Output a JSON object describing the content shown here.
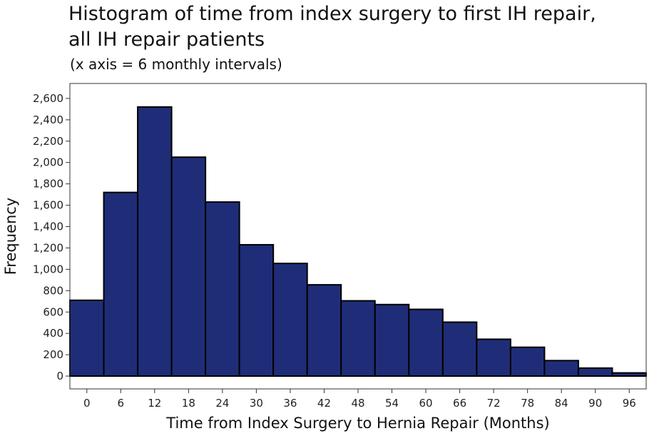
{
  "chart_data": {
    "type": "bar",
    "title_lines": [
      "Histogram of time from index surgery to first IH repair,",
      "all IH repair patients"
    ],
    "subtitle": "(x axis = 6 monthly intervals)",
    "xlabel": "Time from Index Surgery to Hernia Repair (Months)",
    "ylabel": "Frequency",
    "bin_width": 6,
    "x_range": [
      -3,
      99
    ],
    "ylim": [
      -120,
      2740
    ],
    "x_ticks": [
      0,
      6,
      12,
      18,
      24,
      30,
      36,
      42,
      48,
      54,
      60,
      66,
      72,
      78,
      84,
      90,
      96
    ],
    "x_tick_labels": [
      "0",
      "6",
      "12",
      "18",
      "24",
      "30",
      "36",
      "42",
      "48",
      "54",
      "60",
      "66",
      "72",
      "78",
      "84",
      "90",
      "96"
    ],
    "y_ticks": [
      0,
      200,
      400,
      600,
      800,
      1000,
      1200,
      1400,
      1600,
      1800,
      2000,
      2200,
      2400,
      2600
    ],
    "y_tick_labels": [
      "0",
      "200",
      "400",
      "600",
      "800",
      "1,000",
      "1,200",
      "1,400",
      "1,600",
      "1,800",
      "2,000",
      "2,200",
      "2,400",
      "2,600"
    ],
    "bin_starts": [
      -3,
      3,
      9,
      15,
      21,
      27,
      33,
      39,
      45,
      51,
      57,
      63,
      69,
      75,
      81,
      87,
      93
    ],
    "values": [
      710,
      1720,
      2520,
      2050,
      1630,
      1230,
      1055,
      855,
      705,
      670,
      625,
      505,
      345,
      270,
      145,
      75,
      30
    ],
    "grid": false,
    "colors": {
      "bar_fill": "#1f2d78",
      "bar_stroke": "#000000"
    }
  }
}
